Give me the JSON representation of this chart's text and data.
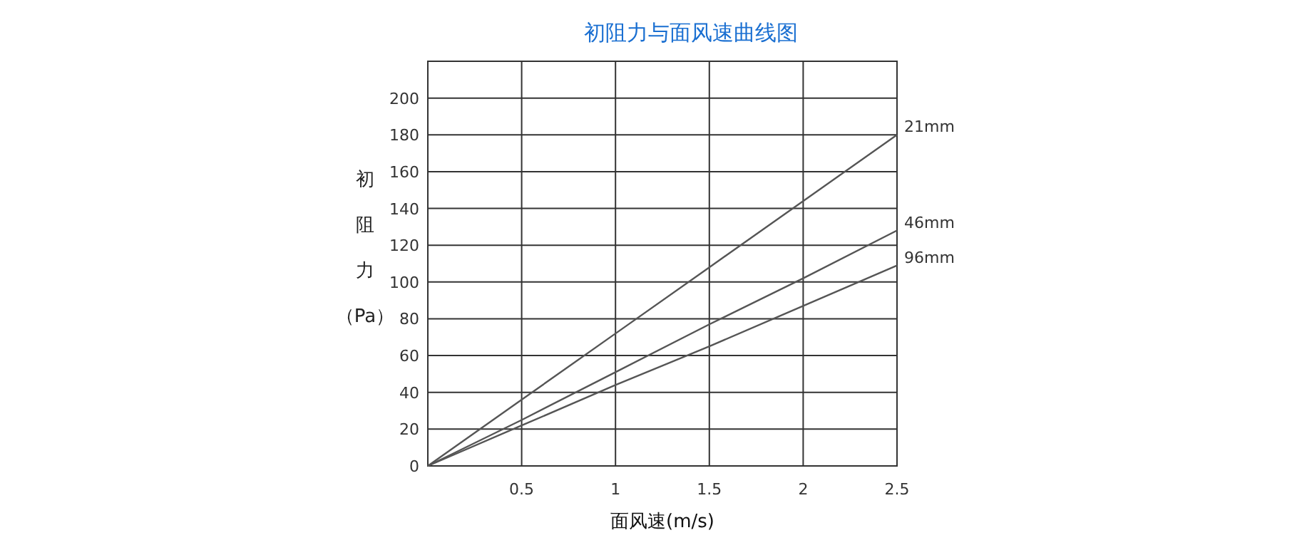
{
  "chart_data": {
    "type": "line",
    "title": "初阻力与面风速曲线图",
    "xlabel": "面风速(m/s)",
    "ylabel": "初阻力（Pa）",
    "x": [
      0,
      0.5,
      1,
      1.5,
      2,
      2.5
    ],
    "series": [
      {
        "name": "21mm",
        "color": "#555555",
        "values": [
          0,
          36,
          72,
          108,
          144,
          180
        ]
      },
      {
        "name": "46mm",
        "color": "#555555",
        "values": [
          0,
          25,
          51,
          77,
          102,
          128
        ]
      },
      {
        "name": "96mm",
        "color": "#555555",
        "values": [
          0,
          22,
          44,
          65,
          87,
          109
        ]
      }
    ],
    "xlim": [
      0,
      2.5
    ],
    "xticks": [
      0.5,
      1,
      1.5,
      2,
      2.5
    ],
    "ylim": [
      0,
      220
    ],
    "yticks": [
      0,
      20,
      40,
      60,
      80,
      100,
      120,
      140,
      160,
      180,
      200,
      {
        "value": 220,
        "label": null
      }
    ],
    "grid": true,
    "legend": false,
    "marker": "none",
    "line_style": "solid"
  }
}
